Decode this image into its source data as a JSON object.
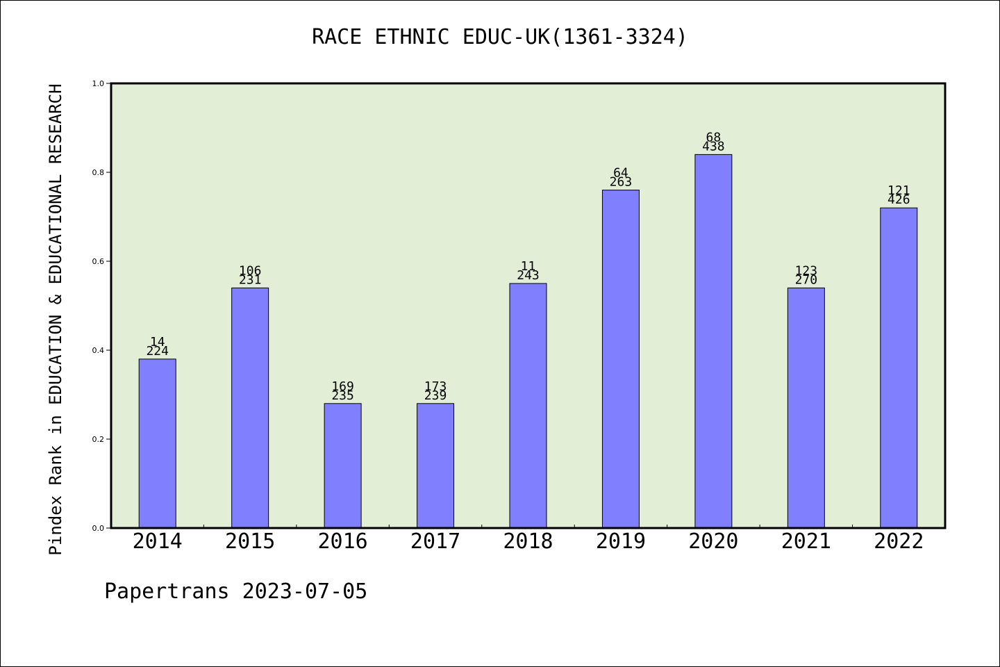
{
  "chart_data": {
    "type": "bar",
    "title": "RACE ETHNIC EDUC-UK(1361-3324)",
    "xlabel": "",
    "ylabel": "Pindex Rank in EDUCATION & EDUCATIONAL RESEARCH",
    "categories": [
      "2014",
      "2015",
      "2016",
      "2017",
      "2018",
      "2019",
      "2020",
      "2021",
      "2022"
    ],
    "values": [
      0.38,
      0.54,
      0.28,
      0.28,
      0.55,
      0.76,
      0.84,
      0.54,
      0.72
    ],
    "bar_labels_top": [
      "14",
      "106",
      "169",
      "173",
      "11",
      "64",
      "68",
      "123",
      "121"
    ],
    "bar_labels_bottom": [
      "224",
      "231",
      "235",
      "239",
      "243",
      "263",
      "438",
      "270",
      "426"
    ],
    "ylim": [
      0,
      1.0
    ],
    "yticks": [
      "0.0",
      "0.2",
      "0.4",
      "0.6",
      "0.8",
      "1.0"
    ],
    "grid": false,
    "legend": "none",
    "colors": {
      "bar_fill": "#8080ff",
      "plot_background": "#e2efd6",
      "axis": "#000000"
    }
  },
  "footer": {
    "credit": "Papertrans 2023-07-05"
  }
}
